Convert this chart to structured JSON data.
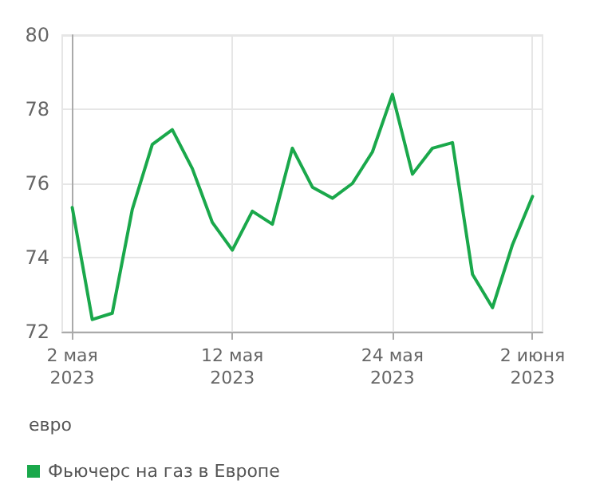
{
  "chart_data": {
    "type": "line",
    "ylabel": "евро",
    "categories": [
      "2 мая\n2023",
      null,
      null,
      null,
      null,
      null,
      null,
      null,
      "12 мая\n2023",
      null,
      null,
      null,
      null,
      null,
      null,
      null,
      "24 мая\n2023",
      null,
      null,
      null,
      null,
      null,
      null,
      "2 июня\n2023"
    ],
    "series": [
      {
        "name": "Фьючерс на газ в Европе",
        "color": "#1aa84b",
        "values": [
          75.35,
          72.33,
          72.5,
          75.3,
          77.05,
          77.45,
          76.4,
          74.95,
          74.2,
          75.25,
          74.9,
          76.95,
          75.9,
          75.6,
          76.0,
          76.85,
          78.4,
          76.25,
          76.95,
          77.1,
          73.55,
          72.65,
          74.35,
          75.65
        ]
      }
    ],
    "ylim": [
      72,
      80
    ],
    "yticks": [
      72,
      74,
      76,
      78,
      80
    ],
    "grid": true,
    "legend": "bottom left",
    "marker": "none",
    "line_style": "solid"
  }
}
